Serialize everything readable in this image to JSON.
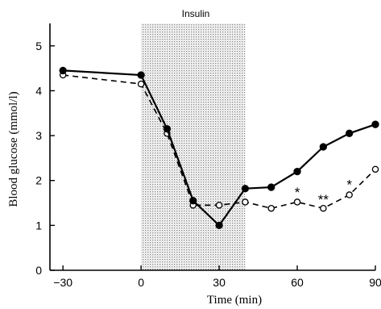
{
  "chart_data": {
    "type": "line",
    "xlabel": "Time (min)",
    "ylabel": "Blood glucose (mmol/l)",
    "xlim": [
      -35,
      90
    ],
    "ylim": [
      0,
      5.5
    ],
    "x_ticks": [
      -30,
      0,
      30,
      60,
      90
    ],
    "y_ticks": [
      0,
      1,
      2,
      3,
      4,
      5
    ],
    "shaded_region": {
      "label": "Insulin",
      "x_start": 0,
      "x_end": 40
    },
    "series": [
      {
        "marker": "filled-circle",
        "line_style": "solid",
        "color": "#000000",
        "x": [
          -30,
          0,
          10,
          20,
          30,
          40,
          50,
          60,
          70,
          80,
          90
        ],
        "y": [
          4.45,
          4.35,
          3.15,
          1.55,
          1.0,
          1.82,
          1.85,
          2.2,
          2.75,
          3.05,
          3.25
        ]
      },
      {
        "marker": "open-circle",
        "line_style": "dashed",
        "color": "#000000",
        "x": [
          -30,
          0,
          10,
          20,
          30,
          40,
          50,
          60,
          70,
          80,
          90
        ],
        "y": [
          4.35,
          4.15,
          3.05,
          1.45,
          1.45,
          1.52,
          1.38,
          1.52,
          1.38,
          1.68,
          2.25
        ]
      }
    ],
    "annotations": [
      {
        "text": "*",
        "x": 60,
        "y": 1.78
      },
      {
        "text": "**",
        "x": 70,
        "y": 1.62
      },
      {
        "text": "*",
        "x": 80,
        "y": 1.95
      }
    ]
  }
}
